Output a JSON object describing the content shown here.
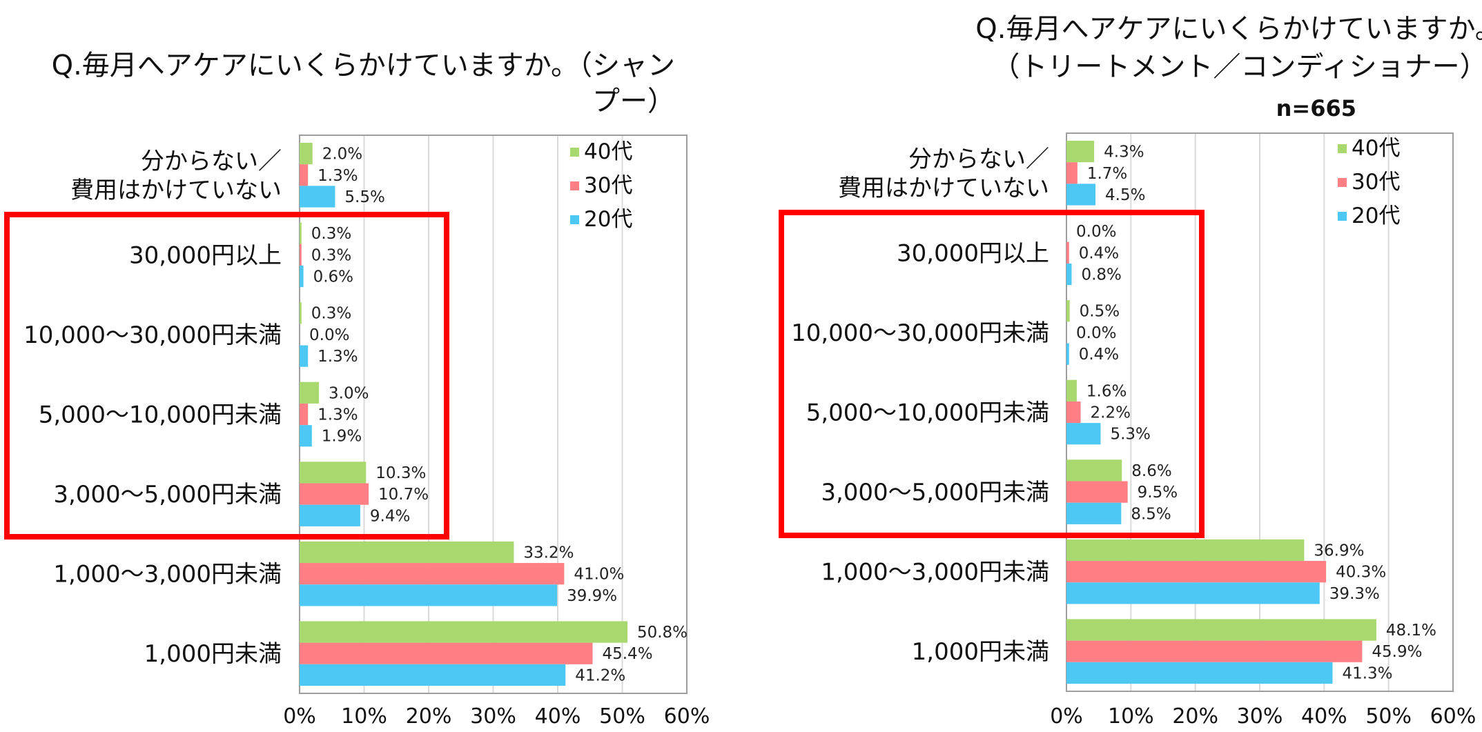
{
  "chart_data": [
    {
      "type": "bar",
      "orientation": "horizontal",
      "title": [
        "Q.毎月へアケアにいくらかけていますか。（シャン",
        "プー）"
      ],
      "n_label": "",
      "categories": [
        "分からない／\n費用はかけていない",
        "30,000円以上",
        "10,000〜30,000円未満",
        "5,000〜10,000円未満",
        "3,000〜5,000円未満",
        "1,000〜3,000円未満",
        "1,000円未満"
      ],
      "series": [
        {
          "name": "40代",
          "color": "#a9d86e",
          "values": [
            2.0,
            0.3,
            0.3,
            3.0,
            10.3,
            33.2,
            50.8
          ],
          "labels": [
            "2.0%",
            "0.3%",
            "0.3%",
            "3.0%",
            "10.3%",
            "33.2%",
            "50.8%"
          ]
        },
        {
          "name": "30代",
          "color": "#ff7f84",
          "values": [
            1.3,
            0.3,
            0.0,
            1.3,
            10.7,
            41.0,
            45.4
          ],
          "labels": [
            "1.3%",
            "0.3%",
            "0.0%",
            "1.3%",
            "10.7%",
            "41.0%",
            "45.4%"
          ]
        },
        {
          "name": "20代",
          "color": "#4dc8f4",
          "values": [
            5.5,
            0.6,
            1.3,
            1.9,
            9.4,
            39.9,
            41.2
          ],
          "labels": [
            "5.5%",
            "0.6%",
            "1.3%",
            "1.9%",
            "9.4%",
            "39.9%",
            "41.2%"
          ]
        }
      ],
      "x_ticks": [
        "0%",
        "10%",
        "20%",
        "30%",
        "40%",
        "50%",
        "60%"
      ],
      "xlim": [
        0,
        60
      ],
      "grid": true,
      "legend_position": "top-right",
      "highlight_box_categories": [
        "30,000円以上",
        "10,000〜30,000円未満",
        "5,000〜10,000円未満",
        "3,000〜5,000円未満"
      ],
      "highlight_color": "#ff0000"
    },
    {
      "type": "bar",
      "orientation": "horizontal",
      "title": [
        "Q.毎月へアケアにいくらかけていますか。",
        "（トリートメント／コンディショナー）"
      ],
      "n_label": "n=665",
      "categories": [
        "分からない／\n費用はかけていない",
        "30,000円以上",
        "10,000〜30,000円未満",
        "5,000〜10,000円未満",
        "3,000〜5,000円未満",
        "1,000〜3,000円未満",
        "1,000円未満"
      ],
      "series": [
        {
          "name": "40代",
          "color": "#a9d86e",
          "values": [
            4.3,
            0.0,
            0.5,
            1.6,
            8.6,
            36.9,
            48.1
          ],
          "labels": [
            "4.3%",
            "0.0%",
            "0.5%",
            "1.6%",
            "8.6%",
            "36.9%",
            "48.1%"
          ]
        },
        {
          "name": "30代",
          "color": "#ff7f84",
          "values": [
            1.7,
            0.4,
            0.0,
            2.2,
            9.5,
            40.3,
            45.9
          ],
          "labels": [
            "1.7%",
            "0.4%",
            "0.0%",
            "2.2%",
            "9.5%",
            "40.3%",
            "45.9%"
          ]
        },
        {
          "name": "20代",
          "color": "#4dc8f4",
          "values": [
            4.5,
            0.8,
            0.4,
            5.3,
            8.5,
            39.3,
            41.3
          ],
          "labels": [
            "4.5%",
            "0.8%",
            "0.4%",
            "5.3%",
            "8.5%",
            "39.3%",
            "41.3%"
          ]
        }
      ],
      "x_ticks": [
        "0%",
        "10%",
        "20%",
        "30%",
        "40%",
        "50%",
        "60%"
      ],
      "xlim": [
        0,
        60
      ],
      "grid": true,
      "legend_position": "top-right",
      "highlight_box_categories": [
        "30,000円以上",
        "10,000〜30,000円未満",
        "5,000〜10,000円未満",
        "3,000〜5,000円未満"
      ],
      "highlight_color": "#ff0000"
    }
  ]
}
